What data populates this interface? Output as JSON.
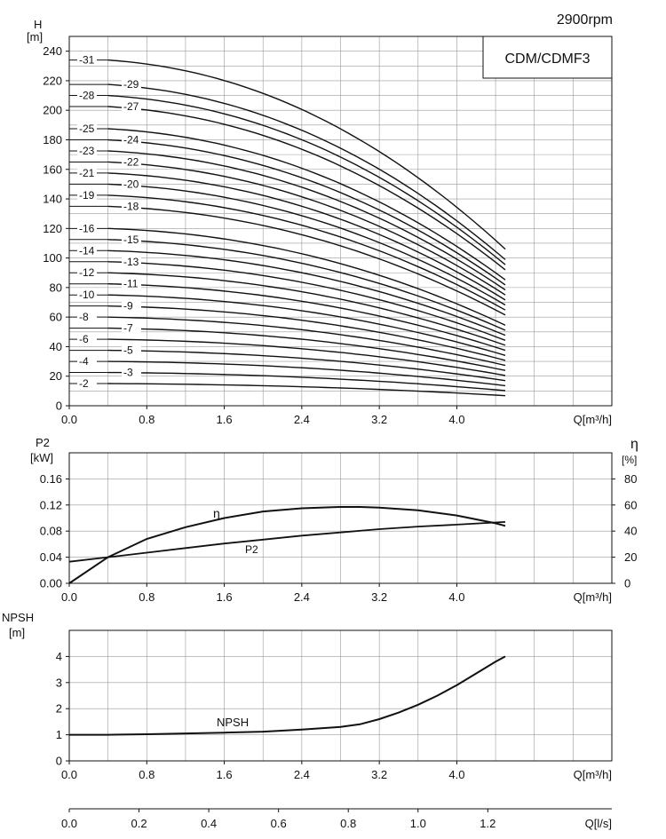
{
  "header": {
    "speed": "2900rpm",
    "model": "CDM/CDMF3"
  },
  "chart_data": [
    {
      "type": "line",
      "name": "head-curves",
      "ylabel": "H",
      "yunit": "[m]",
      "xlabel": "Q[m³/h]",
      "xlim": [
        0,
        5.6
      ],
      "ylim": [
        0,
        250
      ],
      "xticks": [
        "0.0",
        "0.8",
        "1.6",
        "2.4",
        "3.2",
        "4.0"
      ],
      "xtick_values": [
        0,
        0.8,
        1.6,
        2.4,
        3.2,
        4.0
      ],
      "yticks": [
        0,
        20,
        40,
        60,
        80,
        100,
        120,
        140,
        160,
        180,
        200,
        220,
        240
      ],
      "grid": true,
      "q_end": 4.5,
      "stage_shutoff_head": {
        "2": 15,
        "3": 22.5,
        "4": 30,
        "5": 37.5,
        "6": 45,
        "7": 52.5,
        "8": 60,
        "9": 67.5,
        "10": 75,
        "11": 82.5,
        "12": 90,
        "13": 97.5,
        "14": 105,
        "15": 112.5,
        "16": 120,
        "18": 135,
        "19": 142.5,
        "20": 150,
        "21": 157.5,
        "22": 165,
        "23": 172.5,
        "24": 180,
        "25": 187.5,
        "27": 202.5,
        "28": 210,
        "29": 217.5,
        "31": 234
      },
      "stage_end_head": {
        "2": 6.8,
        "3": 10.2,
        "4": 13.6,
        "5": 17,
        "6": 20.5,
        "7": 23.9,
        "8": 27.3,
        "9": 30.7,
        "10": 34.1,
        "11": 37.5,
        "12": 40.9,
        "13": 44.3,
        "14": 47.7,
        "15": 51.1,
        "16": 54.5,
        "18": 61.4,
        "19": 64.8,
        "20": 68.2,
        "21": 71.6,
        "22": 75,
        "23": 78.4,
        "24": 81.8,
        "25": 85.2,
        "27": 92,
        "28": 95.5,
        "29": 98.9,
        "31": 106
      },
      "series_labels": [
        "-2",
        "-3",
        "-4",
        "-5",
        "-6",
        "-7",
        "-8",
        "-9",
        "-10",
        "-11",
        "-12",
        "-13",
        "-14",
        "-15",
        "-16",
        "-18",
        "-19",
        "-20",
        "-21",
        "-22",
        "-23",
        "-24",
        "-25",
        "-27",
        "-28",
        "-29",
        "-31"
      ]
    },
    {
      "type": "line",
      "name": "power-efficiency",
      "ylabel": "P2",
      "yunit": "[kW]",
      "y2label": "η",
      "y2unit": "[%]",
      "xlabel": "Q[m³/h]",
      "xlim": [
        0,
        5.6
      ],
      "ylim": [
        0,
        0.2
      ],
      "y2lim": [
        0,
        100
      ],
      "xticks": [
        "0.0",
        "0.8",
        "1.6",
        "2.4",
        "3.2",
        "4.0"
      ],
      "yticks": [
        "0.00",
        "0.04",
        "0.08",
        "0.12",
        "0.16"
      ],
      "y2ticks": [
        "0",
        "20",
        "40",
        "60",
        "80"
      ],
      "grid": true,
      "series": [
        {
          "name": "η",
          "axis": "right",
          "x": [
            0,
            0.4,
            0.8,
            1.2,
            1.6,
            2.0,
            2.4,
            2.8,
            3.0,
            3.2,
            3.6,
            4.0,
            4.2,
            4.4,
            4.5
          ],
          "y": [
            0,
            20,
            34,
            43,
            50,
            55,
            57.5,
            58.5,
            58.5,
            58,
            56,
            52,
            49,
            46,
            44
          ]
        },
        {
          "name": "P2",
          "axis": "left",
          "x": [
            0,
            0.4,
            0.8,
            1.2,
            1.6,
            2.0,
            2.4,
            2.8,
            3.2,
            3.6,
            4.0,
            4.5
          ],
          "y": [
            0.033,
            0.04,
            0.047,
            0.054,
            0.061,
            0.067,
            0.073,
            0.078,
            0.083,
            0.087,
            0.09,
            0.094
          ]
        }
      ]
    },
    {
      "type": "line",
      "name": "npsh",
      "ylabel": "NPSH",
      "yunit": "[m]",
      "xlabel": "Q[m³/h]",
      "xlim": [
        0,
        5.6
      ],
      "ylim": [
        0,
        5
      ],
      "xticks": [
        "0.0",
        "0.8",
        "1.6",
        "2.4",
        "3.2",
        "4.0"
      ],
      "yticks": [
        "0",
        "1",
        "2",
        "3",
        "4"
      ],
      "grid": true,
      "series": [
        {
          "name": "NPSH",
          "x": [
            0,
            0.4,
            0.8,
            1.2,
            1.6,
            2.0,
            2.4,
            2.8,
            3.0,
            3.2,
            3.4,
            3.6,
            3.8,
            4.0,
            4.2,
            4.4,
            4.5
          ],
          "y": [
            1.0,
            1.0,
            1.02,
            1.05,
            1.08,
            1.12,
            1.2,
            1.3,
            1.4,
            1.6,
            1.85,
            2.15,
            2.5,
            2.9,
            3.35,
            3.8,
            4.0
          ]
        }
      ]
    },
    {
      "type": "axis",
      "name": "flow-ls-scale",
      "xlabel": "Q[l/s]",
      "xlim": [
        0,
        1.5556
      ],
      "xticks": [
        "0.0",
        "0.2",
        "0.4",
        "0.6",
        "0.8",
        "1.0",
        "1.2"
      ],
      "xtick_values": [
        0,
        0.2,
        0.4,
        0.6,
        0.8,
        1.0,
        1.2
      ]
    }
  ]
}
